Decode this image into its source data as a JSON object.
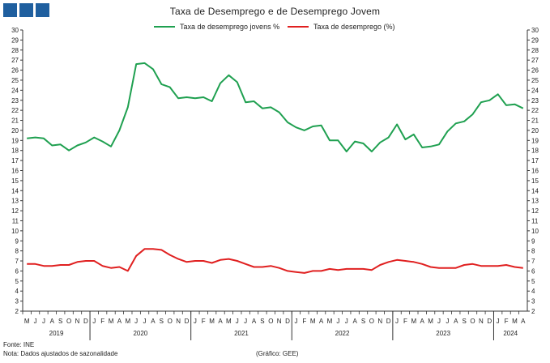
{
  "header": {
    "logo": "square-blocks-logo"
  },
  "chart_data": {
    "type": "line",
    "title": "Taxa de Desemprego e de Desemprego Jovem",
    "ylim": [
      2,
      30
    ],
    "yticks": [
      2,
      3,
      4,
      5,
      6,
      7,
      8,
      9,
      10,
      11,
      12,
      13,
      14,
      15,
      16,
      17,
      18,
      19,
      20,
      21,
      22,
      23,
      24,
      25,
      26,
      27,
      28,
      29,
      30
    ],
    "grid": false,
    "legend": "top",
    "month_labels": [
      "M",
      "J",
      "J",
      "A",
      "S",
      "O",
      "N",
      "D",
      "J",
      "F",
      "M",
      "A",
      "M",
      "J",
      "J",
      "A",
      "S",
      "O",
      "N",
      "D",
      "J",
      "F",
      "M",
      "A",
      "M",
      "J",
      "J",
      "A",
      "S",
      "O",
      "N",
      "D",
      "J",
      "F",
      "M",
      "A",
      "M",
      "J",
      "J",
      "A",
      "S",
      "O",
      "N",
      "D",
      "J",
      "F",
      "M",
      "A",
      "M",
      "J",
      "J",
      "A",
      "S",
      "O",
      "N",
      "D",
      "J",
      "F",
      "M",
      "A"
    ],
    "years": [
      {
        "label": "2019",
        "start": 0,
        "end": 7
      },
      {
        "label": "2020",
        "start": 8,
        "end": 19
      },
      {
        "label": "2021",
        "start": 20,
        "end": 31
      },
      {
        "label": "2022",
        "start": 32,
        "end": 43
      },
      {
        "label": "2023",
        "start": 44,
        "end": 55
      },
      {
        "label": "2024",
        "start": 56,
        "end": 59
      }
    ],
    "series": [
      {
        "name": "Taxa de desemprego jovens %",
        "color": "#1fa050",
        "values": [
          19.2,
          19.3,
          19.2,
          18.5,
          18.6,
          18.0,
          18.5,
          18.8,
          19.3,
          18.9,
          18.4,
          20.0,
          22.3,
          26.6,
          26.7,
          26.1,
          24.6,
          24.3,
          23.2,
          23.3,
          23.2,
          23.3,
          22.9,
          24.7,
          25.5,
          24.8,
          22.8,
          22.9,
          22.2,
          22.3,
          21.8,
          20.8,
          20.3,
          20.0,
          20.4,
          20.5,
          19.0,
          19.0,
          17.9,
          18.9,
          18.7,
          17.9,
          18.8,
          19.3,
          20.6,
          19.1,
          19.6,
          18.3,
          18.4,
          18.6,
          19.9,
          20.7,
          20.9,
          21.6,
          22.8,
          23.0,
          23.6,
          22.5,
          22.6,
          22.2
        ]
      },
      {
        "name": "Taxa de desemprego (%)",
        "color": "#e02020",
        "values": [
          6.7,
          6.7,
          6.5,
          6.5,
          6.6,
          6.6,
          6.9,
          7.0,
          7.0,
          6.5,
          6.3,
          6.4,
          6.0,
          7.5,
          8.2,
          8.2,
          8.1,
          7.6,
          7.2,
          6.9,
          7.0,
          7.0,
          6.8,
          7.1,
          7.2,
          7.0,
          6.7,
          6.4,
          6.4,
          6.5,
          6.3,
          6.0,
          5.9,
          5.8,
          6.0,
          6.0,
          6.2,
          6.1,
          6.2,
          6.2,
          6.2,
          6.1,
          6.6,
          6.9,
          7.1,
          7.0,
          6.9,
          6.7,
          6.4,
          6.3,
          6.3,
          6.3,
          6.6,
          6.7,
          6.5,
          6.5,
          6.5,
          6.6,
          6.4,
          6.3
        ]
      }
    ]
  },
  "footnotes": {
    "source": "Fonte: INE",
    "note": "Nota: Dados ajustados de sazonalidade",
    "credit": "(Gráfico: GEE)"
  }
}
